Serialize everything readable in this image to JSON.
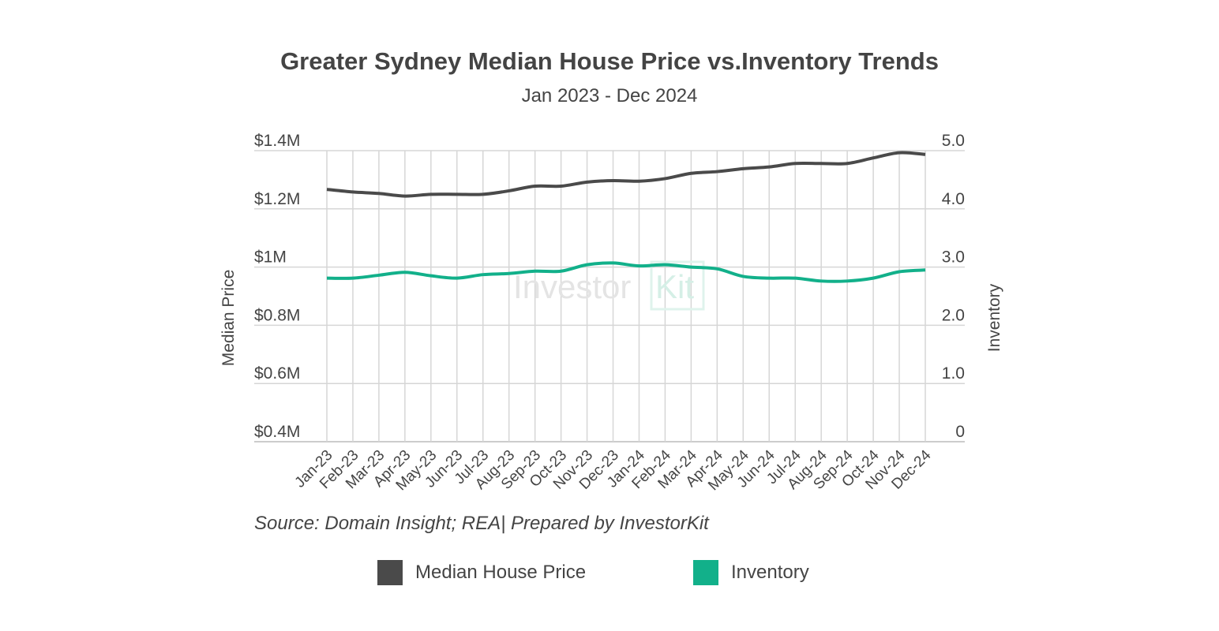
{
  "chart_data": {
    "type": "line",
    "title": "Greater Sydney Median House Price vs.Inventory Trends",
    "subtitle": "Jan 2023 - Dec 2024",
    "source": "Source: Domain Insight; REA| Prepared by InvestorKit",
    "watermark": "InvestorKit",
    "categories": [
      "Jan-23",
      "Feb-23",
      "Mar-23",
      "Apr-23",
      "May-23",
      "Jun-23",
      "Jul-23",
      "Aug-23",
      "Sep-23",
      "Oct-23",
      "Nov-23",
      "Dec-23",
      "Jan-24",
      "Feb-24",
      "Mar-24",
      "Apr-24",
      "May-24",
      "Jun-24",
      "Jul-24",
      "Aug-24",
      "Sep-24",
      "Oct-24",
      "Nov-24",
      "Dec-24"
    ],
    "y_left": {
      "label": "Median Price",
      "range": [
        0.4,
        1.4
      ],
      "unit": "$M",
      "ticks": [
        "$0.4M",
        "$0.6M",
        "$0.8M",
        "$1M",
        "$1.2M",
        "$1.4M"
      ]
    },
    "y_right": {
      "label": "Inventory",
      "range": [
        0,
        5.0
      ],
      "ticks": [
        "0",
        "1.0",
        "2.0",
        "3.0",
        "4.0",
        "5.0"
      ]
    },
    "grid": true,
    "legend_position": "bottom",
    "series": [
      {
        "name": "Median House Price",
        "axis": "left",
        "color": "#4a4a4a",
        "values": [
          1.267,
          1.258,
          1.253,
          1.244,
          1.25,
          1.25,
          1.25,
          1.262,
          1.278,
          1.278,
          1.292,
          1.297,
          1.295,
          1.304,
          1.322,
          1.328,
          1.338,
          1.344,
          1.356,
          1.356,
          1.356,
          1.375,
          1.393,
          1.387
        ]
      },
      {
        "name": "Inventory",
        "axis": "right",
        "color": "#12b08a",
        "values": [
          2.81,
          2.81,
          2.86,
          2.91,
          2.85,
          2.81,
          2.87,
          2.89,
          2.93,
          2.93,
          3.04,
          3.07,
          3.02,
          3.04,
          3.0,
          2.97,
          2.84,
          2.81,
          2.81,
          2.76,
          2.76,
          2.81,
          2.92,
          2.95
        ]
      }
    ]
  }
}
